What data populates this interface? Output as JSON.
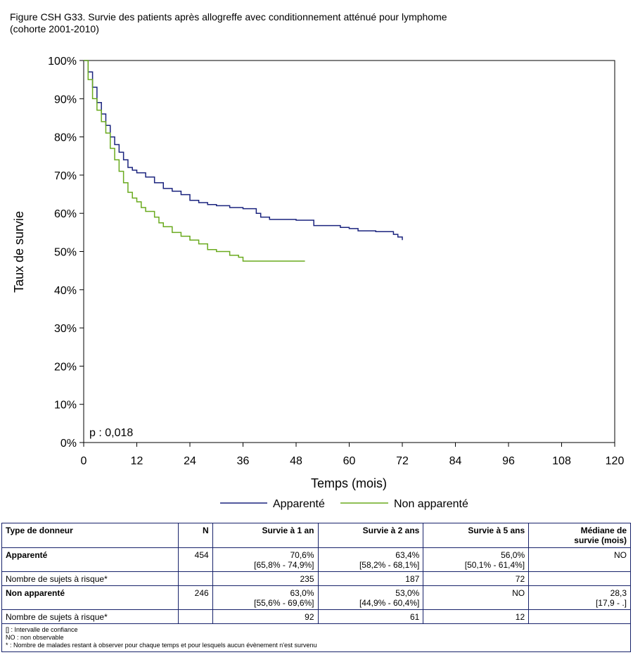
{
  "title_lines": [
    "Figure CSH G33. Survie des patients après allogreffe avec conditionnement atténué pour lymphome",
    "(cohorte 2001-2010)"
  ],
  "chart_data": {
    "type": "line",
    "step": true,
    "xlabel": "Temps (mois)",
    "ylabel": "Taux de survie",
    "xlim": [
      0,
      120
    ],
    "ylim": [
      0,
      100
    ],
    "x_ticks": [
      "0",
      "12",
      "24",
      "36",
      "48",
      "60",
      "72",
      "84",
      "96",
      "108",
      "120"
    ],
    "y_ticks": [
      "0%",
      "10%",
      "20%",
      "30%",
      "40%",
      "50%",
      "60%",
      "70%",
      "80%",
      "90%",
      "100%"
    ],
    "annotation": "p : 0,018",
    "grid": false,
    "legend_position": "bottom",
    "series": [
      {
        "name": "Apparenté",
        "color": "#1a237e",
        "points": [
          [
            0,
            100
          ],
          [
            1,
            97
          ],
          [
            2,
            93
          ],
          [
            3,
            89
          ],
          [
            4,
            86
          ],
          [
            5,
            83
          ],
          [
            6,
            80
          ],
          [
            7,
            78
          ],
          [
            8,
            76
          ],
          [
            9,
            74
          ],
          [
            10,
            72
          ],
          [
            11,
            71.3
          ],
          [
            12,
            70.6
          ],
          [
            14,
            69.5
          ],
          [
            16,
            68
          ],
          [
            18,
            66.5
          ],
          [
            20,
            65.8
          ],
          [
            22,
            64.9
          ],
          [
            24,
            63.4
          ],
          [
            26,
            62.8
          ],
          [
            28,
            62.3
          ],
          [
            30,
            62
          ],
          [
            33,
            61.5
          ],
          [
            36,
            61.2
          ],
          [
            39,
            60
          ],
          [
            40,
            59
          ],
          [
            42,
            58.4
          ],
          [
            48,
            58.2
          ],
          [
            52,
            56.8
          ],
          [
            58,
            56.3
          ],
          [
            60,
            56
          ],
          [
            62,
            55.4
          ],
          [
            66,
            55.2
          ],
          [
            70,
            54.5
          ],
          [
            71,
            53.8
          ],
          [
            72,
            53
          ]
        ]
      },
      {
        "name": "Non apparenté",
        "color": "#6aaa1e",
        "points": [
          [
            0,
            100
          ],
          [
            1,
            95
          ],
          [
            2,
            90
          ],
          [
            3,
            87
          ],
          [
            4,
            84
          ],
          [
            5,
            81
          ],
          [
            6,
            77
          ],
          [
            7,
            74
          ],
          [
            8,
            71
          ],
          [
            9,
            68
          ],
          [
            10,
            65.5
          ],
          [
            11,
            64
          ],
          [
            12,
            63
          ],
          [
            13,
            61.5
          ],
          [
            14,
            60.5
          ],
          [
            16,
            59
          ],
          [
            17,
            57.5
          ],
          [
            18,
            56.5
          ],
          [
            20,
            55
          ],
          [
            22,
            54
          ],
          [
            24,
            53
          ],
          [
            26,
            52
          ],
          [
            28,
            50.5
          ],
          [
            30,
            50
          ],
          [
            33,
            49
          ],
          [
            35,
            48.5
          ],
          [
            36,
            47.5
          ],
          [
            40,
            47.5
          ],
          [
            45,
            47.5
          ],
          [
            50,
            47.5
          ]
        ]
      }
    ]
  },
  "table": {
    "headers": [
      "Type de donneur",
      "N",
      "Survie à 1 an",
      "Survie à 2 ans",
      "Survie à 5 ans",
      "Médiane de survie (mois)"
    ],
    "rows": [
      {
        "label": "Apparenté",
        "n": "454",
        "y1": "70,6%",
        "y1_ci": "[65,8% - 74,9%]",
        "y2": "63,4%",
        "y2_ci": "[58,2% - 68,1%]",
        "y5": "56,0%",
        "y5_ci": "[50,1% - 61,4%]",
        "median": "NO",
        "median_ci": ""
      },
      {
        "label": "Nombre de sujets à risque*",
        "n": "",
        "y1": "235",
        "y2": "187",
        "y5": "72",
        "median": ""
      },
      {
        "label": "Non apparenté",
        "n": "246",
        "y1": "63,0%",
        "y1_ci": "[55,6% - 69,6%]",
        "y2": "53,0%",
        "y2_ci": "[44,9% - 60,4%]",
        "y5": "NO",
        "y5_ci": "",
        "median": "28,3",
        "median_ci": "[17,9 - .]"
      },
      {
        "label": "Nombre de sujets à risque*",
        "n": "",
        "y1": "92",
        "y2": "61",
        "y5": "12",
        "median": ""
      }
    ],
    "notes": [
      "[] : Intervalle de confiance",
      "NO : non observable",
      "* : Nombre de malades restant à observer pour chaque temps et pour lesquels aucun évènement n'est survenu"
    ]
  }
}
